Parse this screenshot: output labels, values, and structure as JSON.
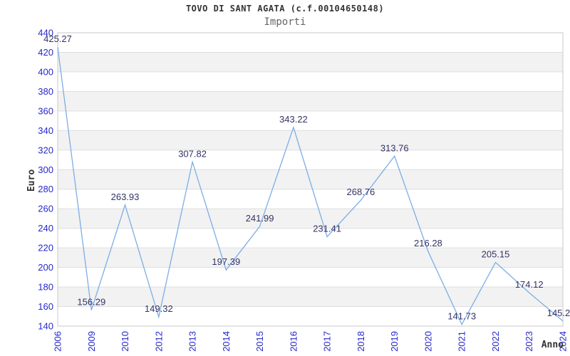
{
  "chart_data": {
    "type": "line",
    "title": "TOVO DI SANT AGATA (c.f.00104650148)",
    "subtitle": "Importi",
    "xlabel": "Anno",
    "ylabel": "Euro",
    "categories": [
      "2006",
      "2009",
      "2010",
      "2012",
      "2013",
      "2014",
      "2015",
      "2016",
      "2017",
      "2018",
      "2019",
      "2020",
      "2021",
      "2022",
      "2023",
      "2024"
    ],
    "values": [
      425.27,
      156.29,
      263.93,
      149.32,
      307.82,
      197.39,
      241.99,
      343.22,
      231.41,
      268.76,
      313.76,
      216.28,
      141.73,
      205.15,
      174.12,
      145.2
    ],
    "point_labels": [
      "425.27",
      "156.29",
      "263.93",
      "149.32",
      "307.82",
      "197.39",
      "241.99",
      "343.22",
      "231.41",
      "268.76",
      "313.76",
      "216.28",
      "141.73",
      "205.15",
      "174.12",
      "145.2"
    ],
    "ylim": [
      140,
      440
    ],
    "ytick_step": 20,
    "layout_hints": {
      "grid": true,
      "alternating_row_bands": true,
      "legend": "none",
      "x_tick_rotation_deg": -90,
      "point_markers": false
    }
  },
  "colors": {
    "series_line": "#7caee6",
    "point_label": "#333366",
    "tick_label": "#2727cc",
    "band_fill": "#f2f2f2",
    "grid_line": "#dedede",
    "plot_border": "#c9c9c9",
    "title_text": "#333333",
    "subtitle_text": "#666666"
  }
}
